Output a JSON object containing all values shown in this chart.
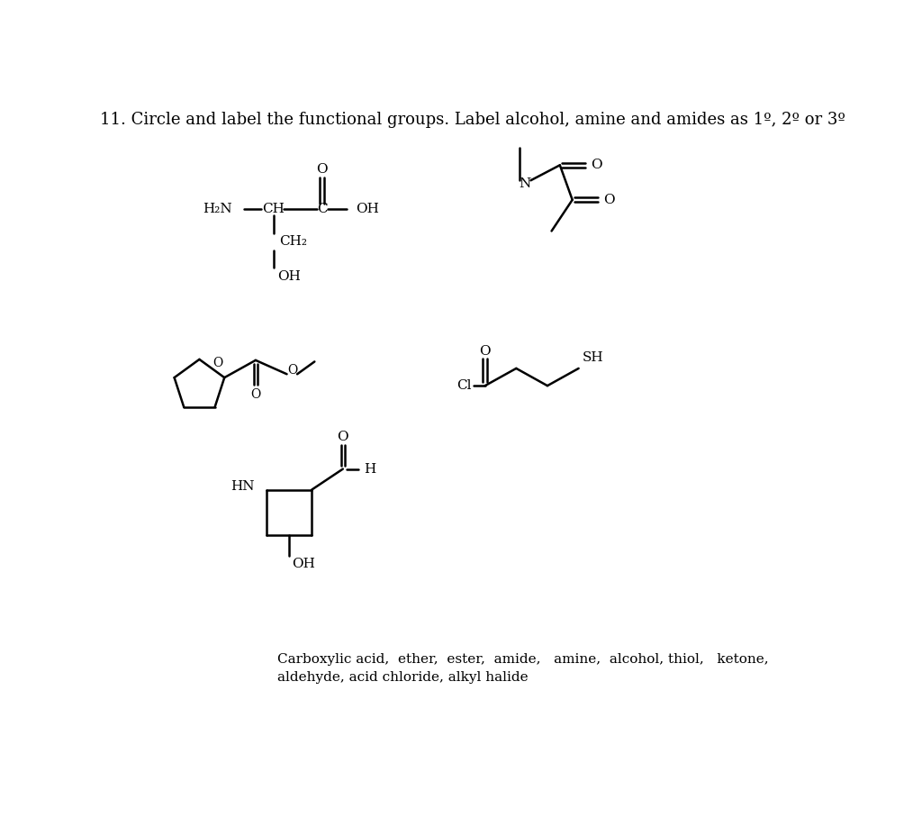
{
  "title": "11. Circle and label the functional groups. Label alcohol, amine and amides as 1º, 2º or 3º",
  "footer_line1": "Carboxylic acid,  ether,  ester,  amide,   amine,  alcohol, thiol,   ketone,",
  "footer_line2": "aldehyde, acid chloride, alkyl halide",
  "bg_color": "#ffffff",
  "text_color": "#000000",
  "line_color": "#000000",
  "line_width": 1.8,
  "font_size": 11,
  "title_font_size": 13
}
